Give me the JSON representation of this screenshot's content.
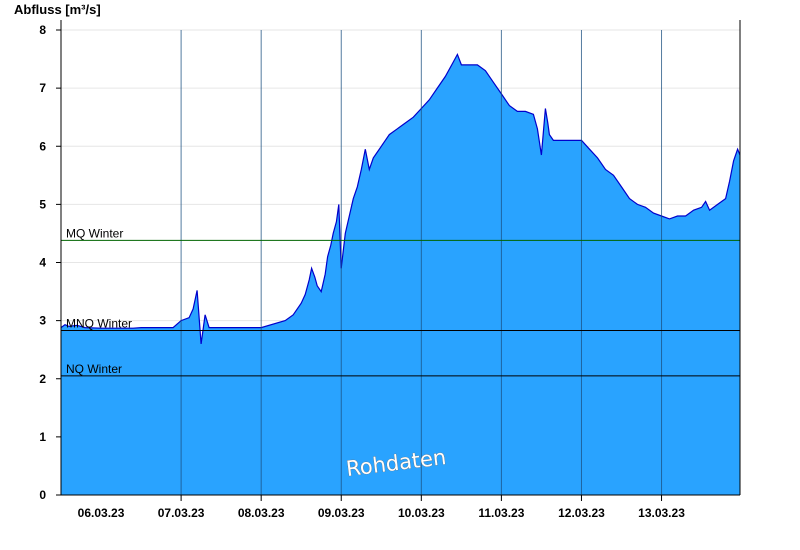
{
  "chart_data": {
    "type": "area",
    "ylabel": "Abfluss [m³/s]",
    "ylim": [
      0,
      8
    ],
    "yticks": [
      0,
      1,
      2,
      3,
      4,
      5,
      6,
      7,
      8
    ],
    "xlim_days": [
      5.5,
      13.98
    ],
    "xtick_labels": [
      "06.03.23",
      "07.03.23",
      "08.03.23",
      "09.03.23",
      "10.03.23",
      "11.03.23",
      "12.03.23",
      "13.03.23"
    ],
    "grid": true,
    "fill_color": "#29a3ff",
    "line_color": "#0000cc",
    "watermark": "Rohdaten",
    "reference_lines": [
      {
        "label": "MQ Winter",
        "value": 4.38,
        "color": "#006400"
      },
      {
        "label": "MNQ Winter",
        "value": 2.83,
        "color": "#000000"
      },
      {
        "label": "NQ Winter",
        "value": 2.05,
        "color": "#000000"
      }
    ],
    "series": [
      {
        "x_dates_march_2023": [
          5.5,
          5.55,
          5.6,
          5.7,
          5.8,
          6.0,
          6.2,
          6.4,
          6.5,
          6.9,
          7.0,
          7.1,
          7.15,
          7.2,
          7.25,
          7.3,
          7.35,
          7.45,
          7.6,
          8.0,
          8.3,
          8.4,
          8.5,
          8.55,
          8.6,
          8.63,
          8.67,
          8.7,
          8.75,
          8.8,
          8.83,
          8.87,
          8.9,
          8.94,
          8.97,
          9.0,
          9.05,
          9.1,
          9.15,
          9.2,
          9.25,
          9.3,
          9.35,
          9.4,
          9.45,
          9.5,
          9.55,
          9.6,
          9.7,
          9.8,
          9.9,
          10.0,
          10.1,
          10.2,
          10.3,
          10.4,
          10.45,
          10.5,
          10.55,
          10.6,
          10.7,
          10.8,
          10.9,
          11.0,
          11.1,
          11.2,
          11.3,
          11.4,
          11.45,
          11.5,
          11.55,
          11.58,
          11.6,
          11.65,
          11.7,
          11.8,
          11.9,
          12.0,
          12.1,
          12.2,
          12.3,
          12.4,
          12.5,
          12.6,
          12.7,
          12.8,
          12.9,
          13.0,
          13.1,
          13.2,
          13.3,
          13.4,
          13.5,
          13.55,
          13.6,
          13.7,
          13.75,
          13.8,
          13.85,
          13.9,
          13.95,
          13.98
        ],
        "y": [
          2.88,
          2.93,
          2.9,
          2.92,
          2.88,
          2.87,
          2.87,
          2.87,
          2.88,
          2.88,
          3.0,
          3.05,
          3.2,
          3.52,
          2.6,
          3.1,
          2.88,
          2.88,
          2.88,
          2.88,
          3.0,
          3.1,
          3.3,
          3.45,
          3.7,
          3.9,
          3.75,
          3.6,
          3.5,
          3.8,
          4.1,
          4.3,
          4.5,
          4.7,
          5.0,
          3.9,
          4.5,
          4.8,
          5.1,
          5.3,
          5.6,
          5.95,
          5.6,
          5.8,
          5.9,
          6.0,
          6.1,
          6.2,
          6.3,
          6.4,
          6.5,
          6.65,
          6.8,
          7.0,
          7.2,
          7.45,
          7.58,
          7.4,
          7.4,
          7.4,
          7.4,
          7.3,
          7.1,
          6.9,
          6.7,
          6.6,
          6.6,
          6.55,
          6.3,
          5.85,
          6.65,
          6.4,
          6.2,
          6.1,
          6.1,
          6.1,
          6.1,
          6.1,
          5.95,
          5.8,
          5.6,
          5.5,
          5.3,
          5.1,
          5.0,
          4.95,
          4.85,
          4.8,
          4.75,
          4.8,
          4.8,
          4.9,
          4.95,
          5.05,
          4.9,
          5.0,
          5.05,
          5.1,
          5.4,
          5.75,
          5.95,
          5.85
        ]
      }
    ]
  }
}
